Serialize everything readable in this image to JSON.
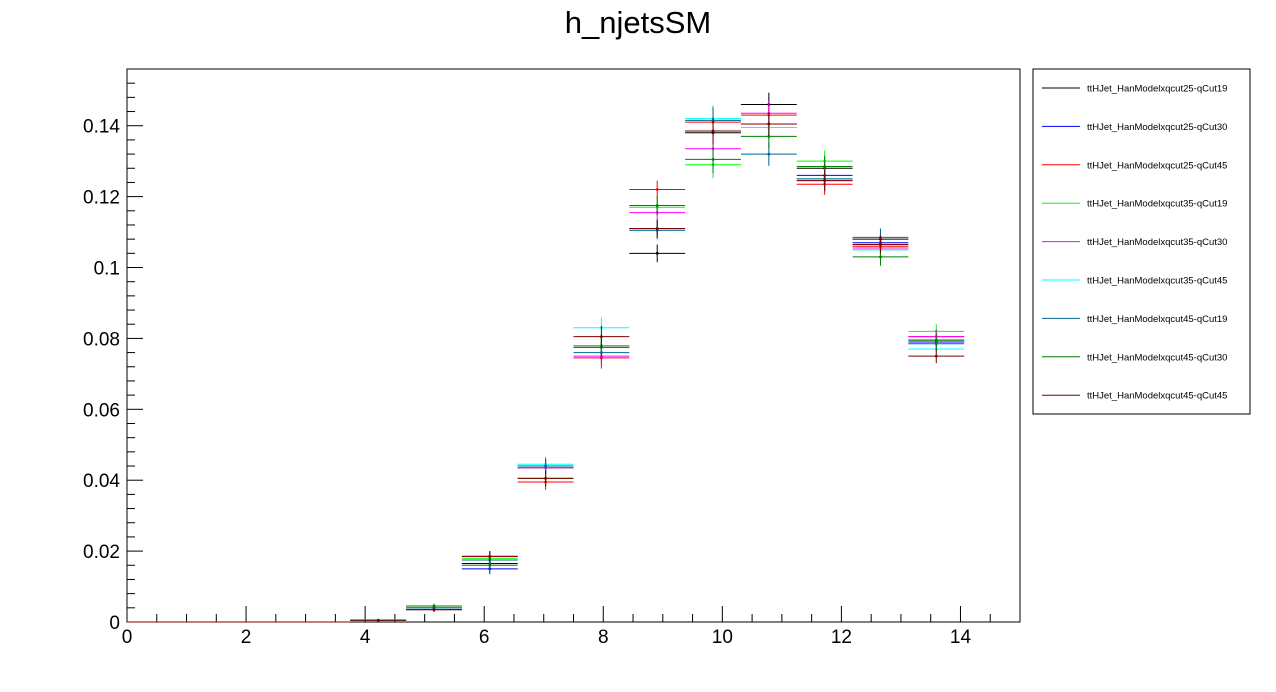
{
  "chart_data": {
    "type": "scatter",
    "title": "h_njetsSM",
    "xlabel": "",
    "ylabel": "",
    "xlim": [
      0,
      15
    ],
    "ylim": [
      0,
      0.156
    ],
    "x_ticks": [
      0,
      2,
      4,
      6,
      8,
      10,
      12,
      14
    ],
    "x_tick_labels": [
      "0",
      "2",
      "4",
      "6",
      "8",
      "10",
      "12",
      "14"
    ],
    "y_ticks": [
      0,
      0.02,
      0.04,
      0.06,
      0.08,
      0.1,
      0.12,
      0.14
    ],
    "y_tick_labels": [
      "0",
      "0.02",
      "0.04",
      "0.06",
      "0.08",
      "0.1",
      "0.12",
      "0.14"
    ],
    "bin_edges": [
      0,
      0.9375,
      1.875,
      2.8125,
      3.75,
      4.6875,
      5.625,
      6.5625,
      7.5,
      8.4375,
      9.375,
      10.3125,
      11.25,
      12.1875,
      13.125,
      14.0625
    ],
    "grid": false,
    "legend_position": "right",
    "series": [
      {
        "name": "ttHJet_HanModelxqcut25-qCut19",
        "color": "#000000",
        "values": [
          0,
          0,
          0,
          0,
          0.0005,
          0.0035,
          0.0165,
          0.0435,
          0.0775,
          0.104,
          0.138,
          0.146,
          0.128,
          0.108,
          0.0795
        ],
        "errors": [
          0,
          0,
          0,
          0,
          0.0003,
          0.0007,
          0.0015,
          0.0022,
          0.003,
          0.0025,
          0.0038,
          0.0033,
          0.003,
          0.0025,
          0.002
        ]
      },
      {
        "name": "ttHJet_HanModelxqcut25-qCut30",
        "color": "#0000ff",
        "values": [
          0,
          0,
          0,
          0,
          0.0005,
          0.004,
          0.015,
          0.044,
          0.078,
          0.111,
          0.1385,
          0.1405,
          0.126,
          0.107,
          0.079
        ],
        "errors": [
          0,
          0,
          0,
          0,
          0.0003,
          0.0007,
          0.0015,
          0.0022,
          0.003,
          0.0025,
          0.0038,
          0.0033,
          0.003,
          0.0025,
          0.002
        ]
      },
      {
        "name": "ttHJet_HanModelxqcut25-qCut45",
        "color": "#ff0000",
        "values": [
          0,
          0,
          0,
          0,
          0.0005,
          0.0035,
          0.0185,
          0.0395,
          0.0745,
          0.122,
          0.141,
          0.143,
          0.1235,
          0.106,
          0.0805
        ],
        "errors": [
          0,
          0,
          0,
          0,
          0.0003,
          0.0007,
          0.0015,
          0.0022,
          0.003,
          0.0025,
          0.0038,
          0.0033,
          0.003,
          0.0025,
          0.002
        ]
      },
      {
        "name": "ttHJet_HanModelxqcut35-qCut19",
        "color": "#00ff00",
        "values": [
          0,
          0,
          0,
          0,
          0.0005,
          0.0045,
          0.018,
          0.0405,
          0.078,
          0.117,
          0.129,
          0.1395,
          0.13,
          0.105,
          0.082
        ],
        "errors": [
          0,
          0,
          0,
          0,
          0.0003,
          0.0007,
          0.0015,
          0.0022,
          0.003,
          0.0025,
          0.0038,
          0.0033,
          0.003,
          0.0025,
          0.002
        ]
      },
      {
        "name": "ttHJet_HanModelxqcut35-qCut30",
        "color": "#ff00ff",
        "values": [
          0,
          0,
          0,
          0,
          0.0005,
          0.004,
          0.0185,
          0.0435,
          0.075,
          0.1155,
          0.1335,
          0.1435,
          0.1245,
          0.1055,
          0.0805
        ],
        "errors": [
          0,
          0,
          0,
          0,
          0.0003,
          0.0007,
          0.0015,
          0.0022,
          0.003,
          0.0025,
          0.0038,
          0.0033,
          0.003,
          0.0025,
          0.002
        ]
      },
      {
        "name": "ttHJet_HanModelxqcut35-qCut45",
        "color": "#00ffff",
        "values": [
          0,
          0,
          0,
          0,
          0.0005,
          0.004,
          0.0175,
          0.0445,
          0.083,
          0.1105,
          0.142,
          0.1395,
          0.125,
          0.105,
          0.077
        ],
        "errors": [
          0,
          0,
          0,
          0,
          0.0003,
          0.0007,
          0.0015,
          0.0022,
          0.003,
          0.0025,
          0.0038,
          0.0033,
          0.003,
          0.0025,
          0.002
        ]
      },
      {
        "name": "ttHJet_HanModelxqcut45-qCut19",
        "color": "#00688b",
        "values": [
          0,
          0,
          0,
          0,
          0.0005,
          0.004,
          0.0175,
          0.044,
          0.076,
          0.1105,
          0.1415,
          0.132,
          0.125,
          0.1085,
          0.0785
        ],
        "errors": [
          0,
          0,
          0,
          0,
          0.0003,
          0.0007,
          0.0015,
          0.0022,
          0.003,
          0.0025,
          0.0038,
          0.0033,
          0.003,
          0.0025,
          0.002
        ]
      },
      {
        "name": "ttHJet_HanModelxqcut45-qCut30",
        "color": "#007f00",
        "values": [
          0,
          0,
          0,
          0,
          0.0005,
          0.0045,
          0.016,
          0.0405,
          0.0775,
          0.1175,
          0.1305,
          0.137,
          0.1285,
          0.103,
          0.0795
        ],
        "errors": [
          0,
          0,
          0,
          0,
          0.0003,
          0.0007,
          0.0015,
          0.0022,
          0.003,
          0.0025,
          0.0038,
          0.0033,
          0.003,
          0.0025,
          0.002
        ]
      },
      {
        "name": "ttHJet_HanModelxqcut45-qCut45",
        "color": "#7f0000",
        "values": [
          0,
          0,
          0,
          0,
          0.0005,
          0.0035,
          0.0185,
          0.0405,
          0.0805,
          0.111,
          0.1385,
          0.1405,
          0.1245,
          0.1065,
          0.075
        ],
        "errors": [
          0,
          0,
          0,
          0,
          0.0003,
          0.0007,
          0.0015,
          0.0022,
          0.003,
          0.0025,
          0.0038,
          0.0033,
          0.003,
          0.0025,
          0.002
        ]
      }
    ]
  }
}
